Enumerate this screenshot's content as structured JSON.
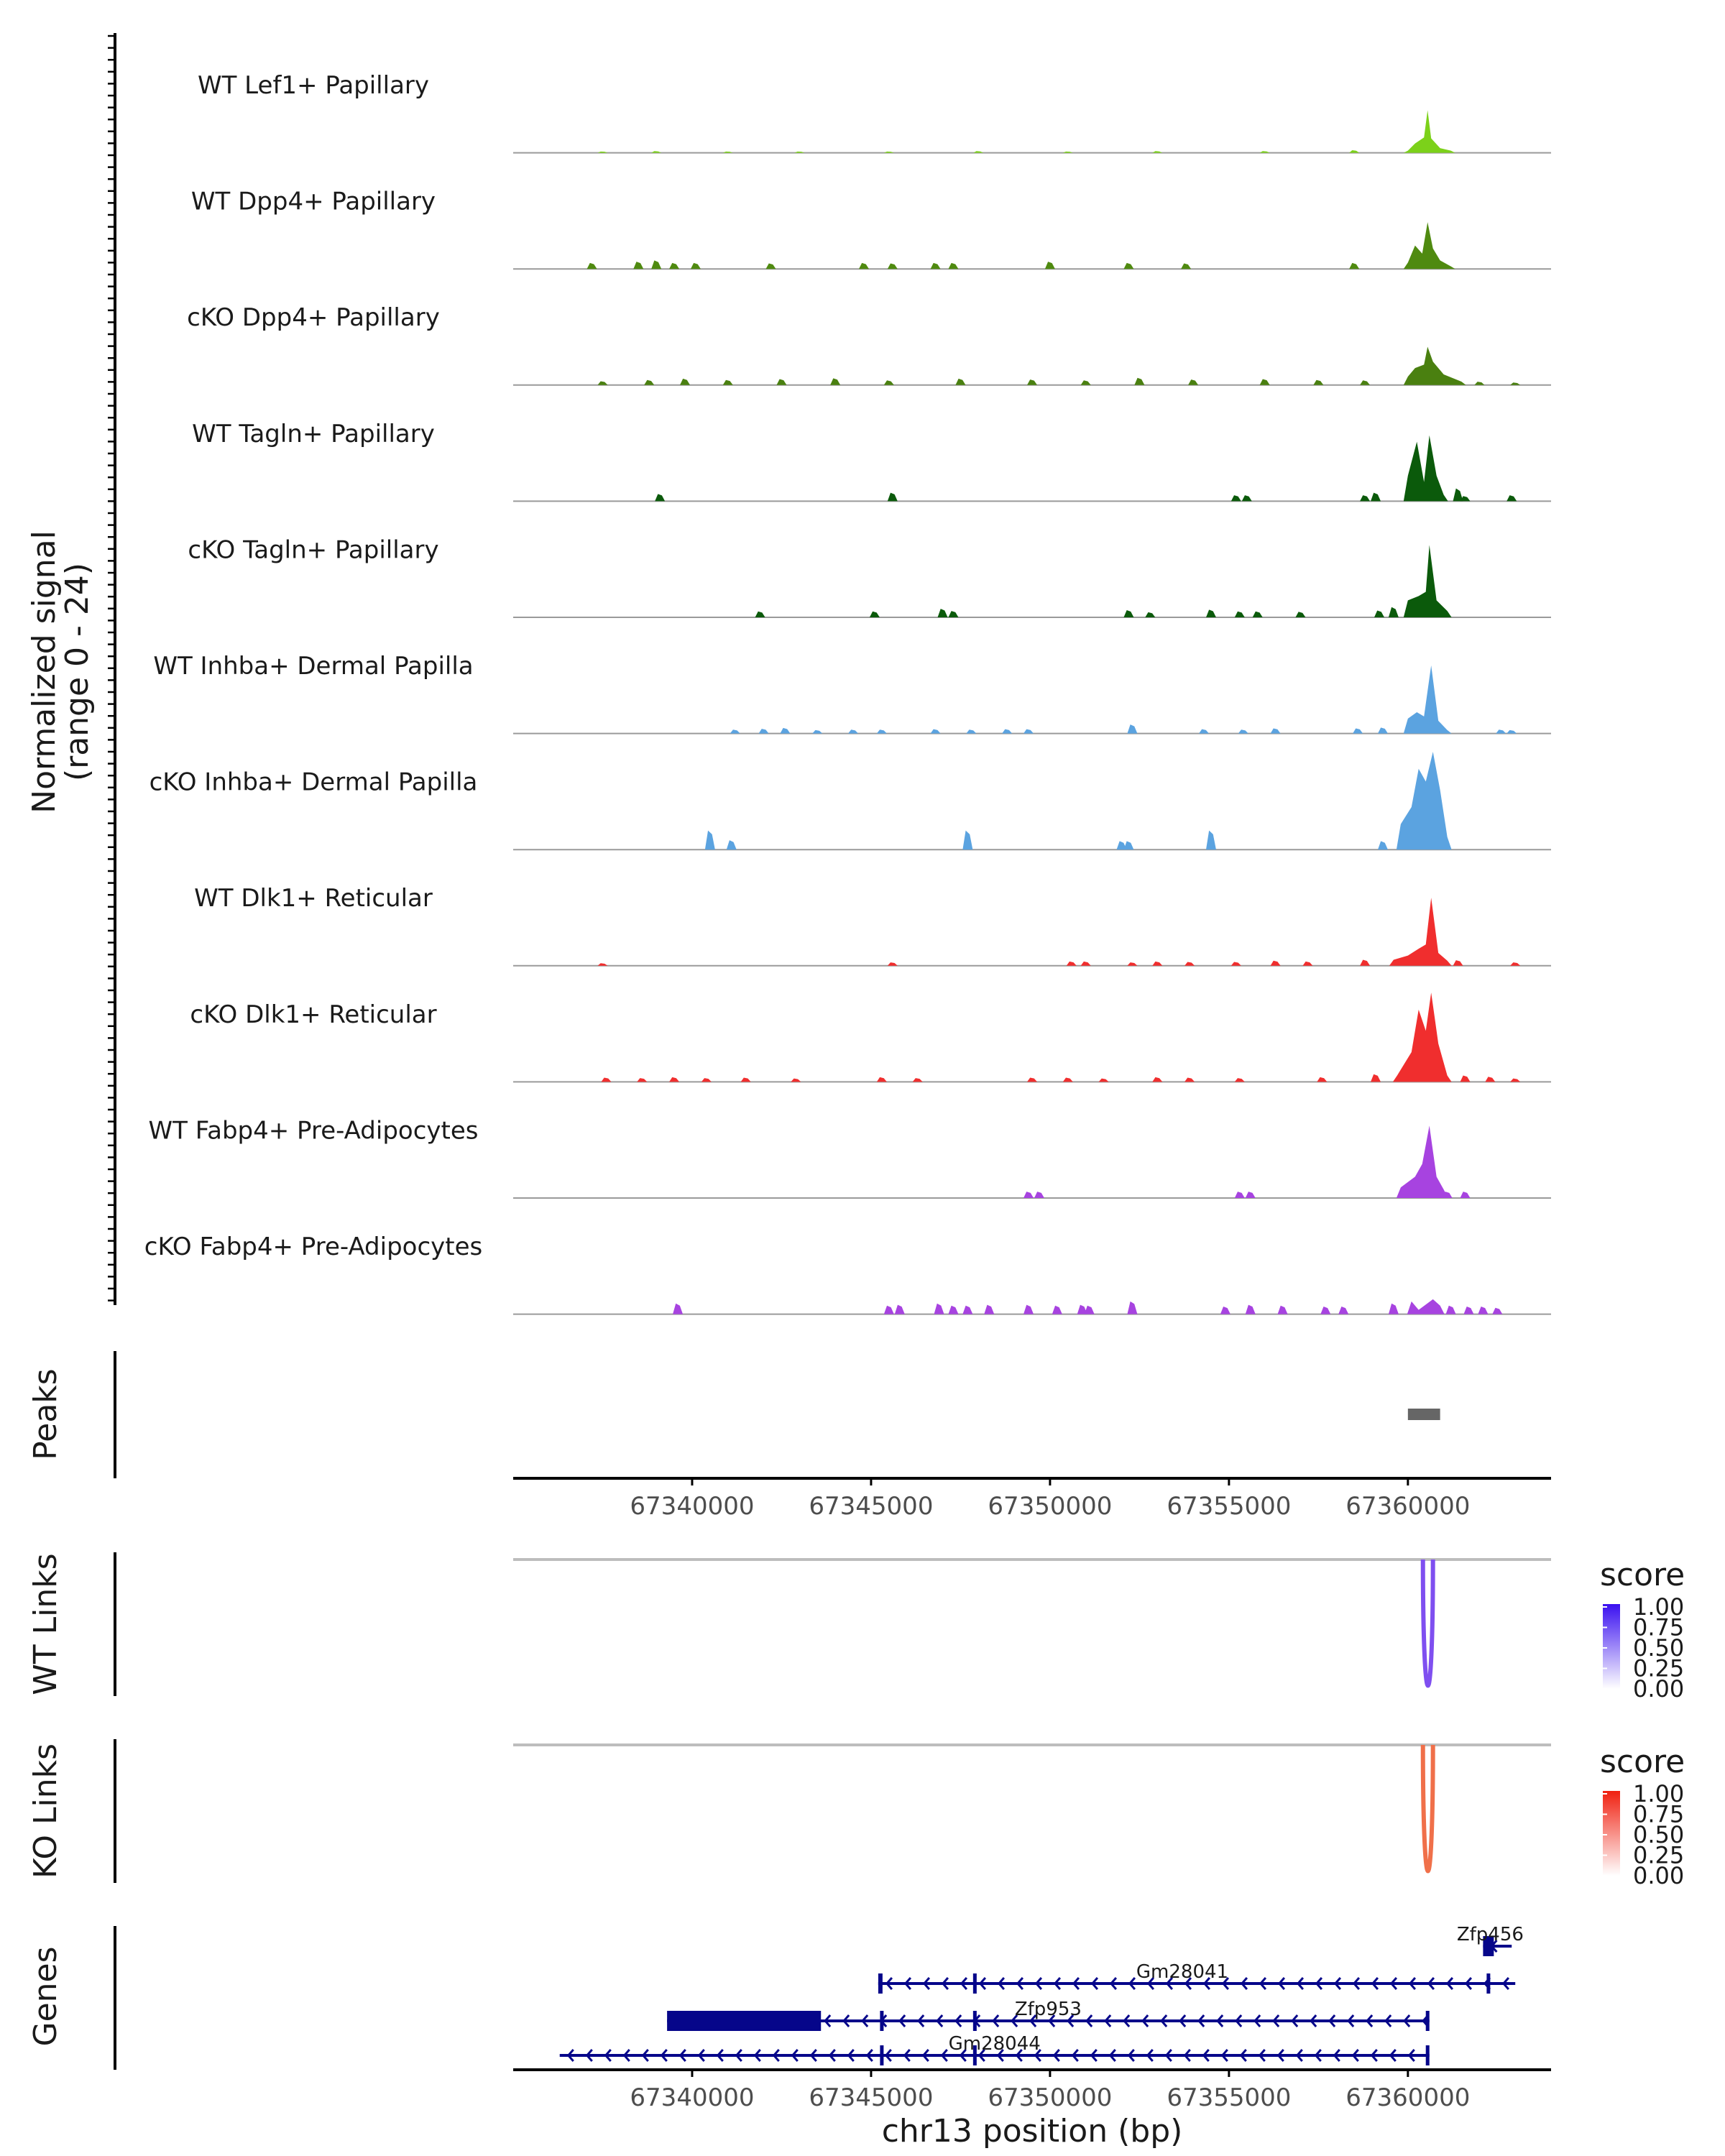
{
  "chart_data": {
    "type": "genome-browser coverage plot",
    "region": "chr13",
    "x_axis_label": "chr13 position (bp)",
    "x_ticks": [
      67340000,
      67345000,
      67350000,
      67355000,
      67360000
    ],
    "x_range": [
      67335000,
      67364000
    ],
    "signal_axis_label": "Normalized signal",
    "signal_axis_sublabel": "(range 0 - 24)",
    "signal_range": [
      0,
      24
    ],
    "tracks": [
      {
        "name": "WT Lef1+ Papillary",
        "color": "#7cd11a",
        "noise": [
          [
            67337500,
            0.3
          ],
          [
            67339000,
            0.4
          ],
          [
            67341000,
            0.3
          ],
          [
            67343000,
            0.3
          ],
          [
            67345500,
            0.3
          ],
          [
            67348000,
            0.4
          ],
          [
            67350500,
            0.3
          ],
          [
            67353000,
            0.4
          ],
          [
            67356000,
            0.4
          ],
          [
            67358500,
            0.6
          ]
        ],
        "peak": [
          [
            67360000,
            0.5
          ],
          [
            67360200,
            2.2
          ],
          [
            67360450,
            3.6
          ],
          [
            67360550,
            10.0
          ],
          [
            67360650,
            3.4
          ],
          [
            67360900,
            1.1
          ],
          [
            67361200,
            0.5
          ]
        ]
      },
      {
        "name": "WT Dpp4+ Papillary",
        "color": "#4f8a10",
        "noise": [
          [
            67337200,
            1.4
          ],
          [
            67338500,
            1.7
          ],
          [
            67339000,
            2.0
          ],
          [
            67339500,
            1.4
          ],
          [
            67340100,
            1.4
          ],
          [
            67342200,
            1.3
          ],
          [
            67344800,
            1.4
          ],
          [
            67345600,
            1.3
          ],
          [
            67346800,
            1.4
          ],
          [
            67347300,
            1.4
          ],
          [
            67350000,
            1.7
          ],
          [
            67352200,
            1.4
          ],
          [
            67353800,
            1.3
          ],
          [
            67358500,
            1.4
          ]
        ],
        "peak": [
          [
            67360000,
            1.5
          ],
          [
            67360200,
            5.5
          ],
          [
            67360400,
            3.6
          ],
          [
            67360550,
            11.0
          ],
          [
            67360700,
            4.8
          ],
          [
            67360900,
            2.0
          ],
          [
            67361200,
            0.6
          ]
        ]
      },
      {
        "name": "cKO Dpp4+ Papillary",
        "color": "#4a8010",
        "noise": [
          [
            67337500,
            0.9
          ],
          [
            67338800,
            1.2
          ],
          [
            67339800,
            1.5
          ],
          [
            67341000,
            1.2
          ],
          [
            67342500,
            1.4
          ],
          [
            67344000,
            1.6
          ],
          [
            67345500,
            1.1
          ],
          [
            67347500,
            1.5
          ],
          [
            67349500,
            1.3
          ],
          [
            67351000,
            1.1
          ],
          [
            67352500,
            1.7
          ],
          [
            67354000,
            1.3
          ],
          [
            67356000,
            1.4
          ],
          [
            67357500,
            1.2
          ],
          [
            67358800,
            1.1
          ],
          [
            67362000,
            0.8
          ],
          [
            67363000,
            0.6
          ]
        ],
        "peak": [
          [
            67360000,
            2.0
          ],
          [
            67360200,
            4.0
          ],
          [
            67360450,
            4.8
          ],
          [
            67360550,
            9.0
          ],
          [
            67360700,
            5.5
          ],
          [
            67361000,
            2.5
          ],
          [
            67361500,
            0.8
          ]
        ]
      },
      {
        "name": "WT Tagln+ Papillary",
        "color": "#0b5a0b",
        "noise": [
          [
            67339100,
            1.7
          ],
          [
            67345600,
            2.0
          ],
          [
            67355200,
            1.4
          ],
          [
            67355500,
            1.4
          ],
          [
            67358800,
            1.4
          ],
          [
            67359100,
            2.0
          ],
          [
            67361400,
            3.0
          ],
          [
            67361600,
            1.2
          ],
          [
            67362900,
            1.4
          ]
        ],
        "peak": [
          [
            67360000,
            6.0
          ],
          [
            67360250,
            14.0
          ],
          [
            67360450,
            4.5
          ],
          [
            67360600,
            15.5
          ],
          [
            67360800,
            6.0
          ],
          [
            67361000,
            1.5
          ]
        ]
      },
      {
        "name": "cKO Tagln+ Papillary",
        "color": "#0b5a0b",
        "noise": [
          [
            67341900,
            1.4
          ],
          [
            67345100,
            1.4
          ],
          [
            67347000,
            2.0
          ],
          [
            67347300,
            1.5
          ],
          [
            67352200,
            1.7
          ],
          [
            67352800,
            1.2
          ],
          [
            67354500,
            1.8
          ],
          [
            67355300,
            1.4
          ],
          [
            67355800,
            1.4
          ],
          [
            67357000,
            1.3
          ],
          [
            67359200,
            1.6
          ],
          [
            67359600,
            2.4
          ]
        ],
        "peak": [
          [
            67360000,
            4.0
          ],
          [
            67360300,
            5.0
          ],
          [
            67360500,
            6.0
          ],
          [
            67360600,
            17.0
          ],
          [
            67360800,
            4.0
          ],
          [
            67361100,
            1.5
          ]
        ]
      },
      {
        "name": "WT Inhba+ Dermal Papilla",
        "color": "#5ba3e0",
        "noise": [
          [
            67341200,
            0.9
          ],
          [
            67342000,
            1.1
          ],
          [
            67342600,
            1.3
          ],
          [
            67343500,
            0.8
          ],
          [
            67344500,
            0.9
          ],
          [
            67345300,
            0.9
          ],
          [
            67346800,
            1.0
          ],
          [
            67347800,
            0.9
          ],
          [
            67348800,
            1.0
          ],
          [
            67349400,
            1.0
          ],
          [
            67352300,
            2.1
          ],
          [
            67354300,
            1.0
          ],
          [
            67355400,
            0.9
          ],
          [
            67356300,
            1.2
          ],
          [
            67358600,
            1.2
          ],
          [
            67359300,
            1.4
          ],
          [
            67362600,
            0.9
          ],
          [
            67362900,
            0.8
          ]
        ],
        "peak": [
          [
            67360000,
            3.5
          ],
          [
            67360250,
            5.0
          ],
          [
            67360450,
            4.0
          ],
          [
            67360650,
            16.0
          ],
          [
            67360850,
            3.0
          ],
          [
            67361100,
            0.8
          ]
        ]
      },
      {
        "name": "cKO Inhba+ Dermal Papilla",
        "color": "#5ba3e0",
        "noise": [
          [
            67340500,
            4.5
          ],
          [
            67341100,
            2.2
          ],
          [
            67347700,
            4.5
          ],
          [
            67352000,
            2.0
          ],
          [
            67352200,
            2.0
          ],
          [
            67354500,
            4.5
          ],
          [
            67359300,
            2.0
          ]
        ],
        "peak": [
          [
            67359800,
            6.0
          ],
          [
            67360100,
            10.0
          ],
          [
            67360300,
            19.0
          ],
          [
            67360500,
            16.0
          ],
          [
            67360700,
            23.0
          ],
          [
            67360900,
            14.0
          ],
          [
            67361100,
            3.0
          ]
        ]
      },
      {
        "name": "WT Dlk1+ Reticular",
        "color": "#f02e2e",
        "noise": [
          [
            67337500,
            0.6
          ],
          [
            67345600,
            0.8
          ],
          [
            67350600,
            1.0
          ],
          [
            67351000,
            1.0
          ],
          [
            67352300,
            0.8
          ],
          [
            67353000,
            1.0
          ],
          [
            67353900,
            0.9
          ],
          [
            67355200,
            0.9
          ],
          [
            67356300,
            1.2
          ],
          [
            67357200,
            1.0
          ],
          [
            67358800,
            1.4
          ],
          [
            67361400,
            1.3
          ],
          [
            67363000,
            0.8
          ]
        ],
        "peak": [
          [
            67359600,
            1.4
          ],
          [
            67360000,
            2.4
          ],
          [
            67360300,
            4.0
          ],
          [
            67360500,
            5.0
          ],
          [
            67360650,
            16.0
          ],
          [
            67360850,
            3.0
          ],
          [
            67361100,
            1.2
          ]
        ]
      },
      {
        "name": "cKO Dlk1+ Reticular",
        "color": "#f02e2e",
        "noise": [
          [
            67337600,
            1.0
          ],
          [
            67338600,
            0.9
          ],
          [
            67339500,
            1.1
          ],
          [
            67340400,
            0.9
          ],
          [
            67341500,
            1.0
          ],
          [
            67342900,
            0.8
          ],
          [
            67345300,
            1.1
          ],
          [
            67346300,
            0.9
          ],
          [
            67349500,
            1.0
          ],
          [
            67350500,
            1.0
          ],
          [
            67351500,
            0.8
          ],
          [
            67353000,
            1.1
          ],
          [
            67353900,
            1.0
          ],
          [
            67355300,
            0.9
          ],
          [
            67357600,
            1.1
          ],
          [
            67359100,
            1.8
          ],
          [
            67361600,
            1.5
          ],
          [
            67362300,
            1.2
          ],
          [
            67363000,
            0.8
          ]
        ],
        "peak": [
          [
            67359700,
            1.5
          ],
          [
            67360100,
            7.0
          ],
          [
            67360300,
            17.0
          ],
          [
            67360500,
            12.0
          ],
          [
            67360650,
            21.0
          ],
          [
            67360850,
            9.0
          ],
          [
            67361100,
            1.5
          ]
        ]
      },
      {
        "name": "WT Fabp4+ Pre-Adipocytes",
        "color": "#a743e0",
        "noise": [
          [
            67349400,
            1.5
          ],
          [
            67349700,
            1.5
          ],
          [
            67355300,
            1.5
          ],
          [
            67355600,
            1.5
          ],
          [
            67361100,
            1.5
          ],
          [
            67361600,
            1.5
          ]
        ],
        "peak": [
          [
            67359800,
            2.5
          ],
          [
            67360200,
            5.0
          ],
          [
            67360400,
            8.0
          ],
          [
            67360600,
            17.0
          ],
          [
            67360800,
            5.0
          ],
          [
            67361000,
            2.0
          ]
        ]
      },
      {
        "name": "cKO Fabp4+ Pre-Adipocytes",
        "color": "#a743e0",
        "noise": [
          [
            67339600,
            2.5
          ],
          [
            67345500,
            2.0
          ],
          [
            67345800,
            2.2
          ],
          [
            67346900,
            2.5
          ],
          [
            67347300,
            2.0
          ],
          [
            67347700,
            2.0
          ],
          [
            67348300,
            2.2
          ],
          [
            67349400,
            2.2
          ],
          [
            67350200,
            2.0
          ],
          [
            67350900,
            2.2
          ],
          [
            67351100,
            2.0
          ],
          [
            67352300,
            3.0
          ],
          [
            67354900,
            1.8
          ],
          [
            67355600,
            2.2
          ],
          [
            67356500,
            2.0
          ],
          [
            67357700,
            1.8
          ],
          [
            67358200,
            1.8
          ],
          [
            67359600,
            2.5
          ],
          [
            67361200,
            2.0
          ],
          [
            67361700,
            1.8
          ],
          [
            67362100,
            1.8
          ],
          [
            67362500,
            1.5
          ]
        ],
        "peak": [
          [
            67360100,
            3.0
          ],
          [
            67360300,
            1.0
          ],
          [
            67360700,
            3.5
          ],
          [
            67360900,
            2.0
          ]
        ]
      }
    ],
    "peaks_track": {
      "label": "Peaks",
      "regions": [
        [
          67360000,
          67360900
        ]
      ],
      "color": "#666666"
    },
    "link_tracks": [
      {
        "label": "WT Links",
        "legend_title": "score",
        "low_color": "#ffffff",
        "high_color": "#3a10f0",
        "link_color": "#7f4ff0",
        "legend_ticks": [
          "1.00",
          "0.75",
          "0.50",
          "0.25",
          "0.00"
        ],
        "links": [
          {
            "start": 67360420,
            "end": 67360700,
            "score": 0.7
          }
        ]
      },
      {
        "label": "KO Links",
        "legend_title": "score",
        "low_color": "#ffffff",
        "high_color": "#f02010",
        "link_color": "#f0704a",
        "legend_ticks": [
          "1.00",
          "0.75",
          "0.50",
          "0.25",
          "0.00"
        ],
        "links": [
          {
            "start": 67360420,
            "end": 67360700,
            "score": 0.65
          }
        ]
      }
    ],
    "genes_track": {
      "label": "Genes",
      "color": "#06068a",
      "genes": [
        {
          "name": "Zfp456",
          "start": 67362100,
          "end": 67362900,
          "strand": "-",
          "exons": [
            [
              67362100,
              67362400
            ]
          ]
        },
        {
          "name": "Gm28041",
          "start": 67345200,
          "end": 67363000,
          "strand": "-",
          "exons": [
            [
              67345200,
              67345320
            ],
            [
              67347850,
              67347950
            ],
            [
              67362200,
              67362300
            ]
          ]
        },
        {
          "name": "Zfp953",
          "start": 67339300,
          "end": 67360600,
          "strand": "-",
          "exons": [
            [
              67339300,
              67343600
            ],
            [
              67345250,
              67345350
            ],
            [
              67347850,
              67347950
            ],
            [
              67360500,
              67360600
            ]
          ]
        },
        {
          "name": "Gm28044",
          "start": 67336300,
          "end": 67360600,
          "strand": "-",
          "exons": [
            [
              67345250,
              67345350
            ],
            [
              67347850,
              67347950
            ],
            [
              67360500,
              67360600
            ]
          ]
        }
      ]
    }
  }
}
